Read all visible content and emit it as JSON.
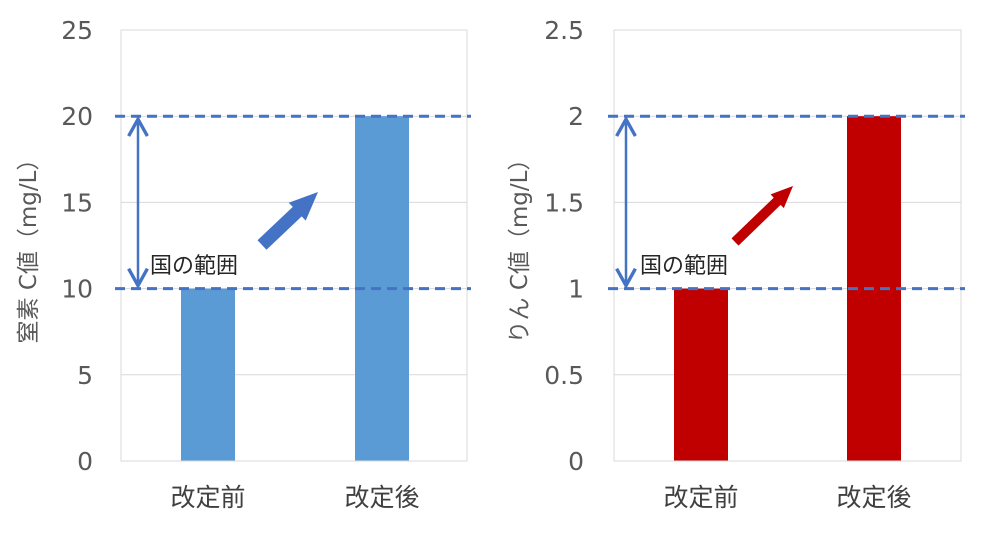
{
  "chart_data": [
    {
      "type": "bar",
      "categories": [
        "改定前",
        "改定後"
      ],
      "values": [
        10,
        20
      ],
      "ylabel": "窒素 C値（mg/L）",
      "ylim": [
        0,
        25
      ],
      "yticks": [
        "0",
        "5",
        "10",
        "15",
        "20",
        "25"
      ],
      "grid": true,
      "bar_color": "#5b9bd5",
      "arrow_color": "#4472c4",
      "range_lines": [
        10,
        20
      ],
      "range_line_color": "#4472c4",
      "annotation": "国の範囲"
    },
    {
      "type": "bar",
      "categories": [
        "改定前",
        "改定後"
      ],
      "values": [
        1,
        2
      ],
      "ylabel": "りん C値（mg/L）",
      "ylim": [
        0,
        2.5
      ],
      "yticks": [
        "0",
        "0.5",
        "1",
        "1.5",
        "2",
        "2.5"
      ],
      "grid": true,
      "bar_color": "#c00000",
      "arrow_color": "#c00000",
      "range_lines": [
        1,
        2
      ],
      "range_line_color": "#4472c4",
      "annotation": "国の範囲"
    }
  ]
}
